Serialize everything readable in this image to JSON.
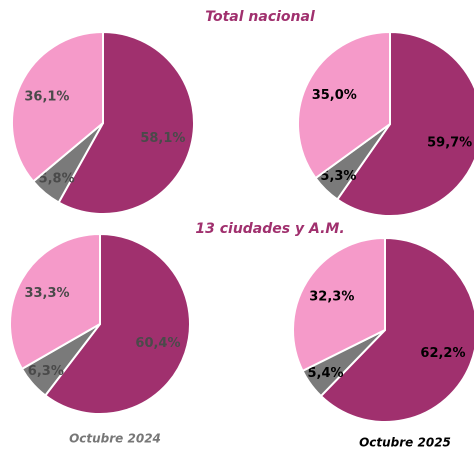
{
  "sections": [
    "Total nacional",
    "13 ciudades y A.M."
  ],
  "captions": [
    "Octubre 2024",
    "Octubre 2025"
  ],
  "chart_data": [
    {
      "type": "pie",
      "values": [
        58.1,
        5.8,
        36.1
      ],
      "value_labels": [
        "58,1%",
        "5,8%",
        "36,1%"
      ],
      "colors": [
        "#a0306e",
        "#7a7a7a",
        "#f59ac9"
      ],
      "label_color": "#4a4a4a"
    },
    {
      "type": "pie",
      "values": [
        59.7,
        5.3,
        35.0
      ],
      "value_labels": [
        "59,7%",
        "5,3%",
        "35,0%"
      ],
      "colors": [
        "#a0306e",
        "#7a7a7a",
        "#f59ac9"
      ],
      "label_color": "#000000"
    },
    {
      "type": "pie",
      "values": [
        60.4,
        6.3,
        33.3
      ],
      "value_labels": [
        "60,4%",
        "6,3%",
        "33,3%"
      ],
      "colors": [
        "#a0306e",
        "#7a7a7a",
        "#f59ac9"
      ],
      "label_color": "#4a4a4a"
    },
    {
      "type": "pie",
      "values": [
        62.2,
        5.4,
        32.3
      ],
      "value_labels": [
        "62,2%",
        "5,4%",
        "32,3%"
      ],
      "colors": [
        "#a0306e",
        "#7a7a7a",
        "#f59ac9"
      ],
      "label_color": "#000000"
    }
  ]
}
